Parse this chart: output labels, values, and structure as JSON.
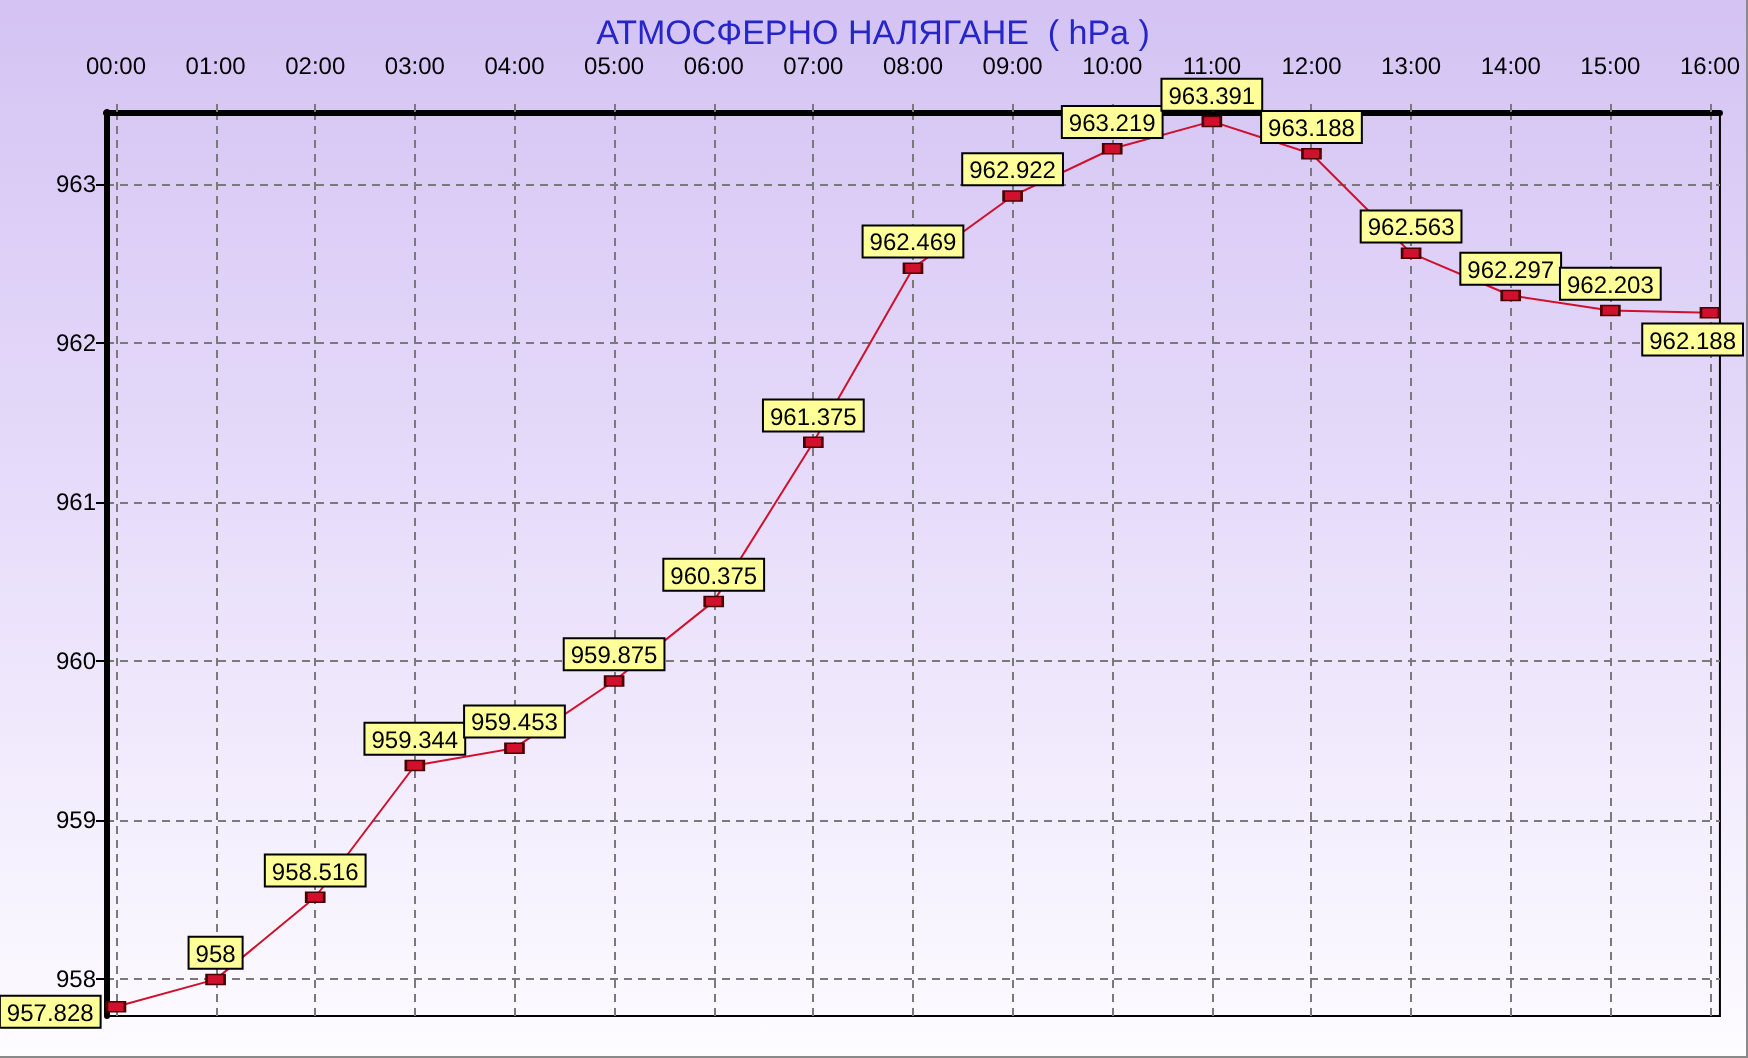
{
  "chart_data": {
    "type": "line",
    "title": "АТМОСФЕРНО НАЛЯГАНЕ  ( hPa )",
    "x": [
      0,
      1,
      2,
      3,
      4,
      5,
      6,
      7,
      8,
      9,
      10,
      11,
      12,
      13,
      14,
      15,
      16
    ],
    "values": [
      957.828,
      958,
      958.516,
      959.344,
      959.453,
      959.875,
      960.375,
      961.375,
      962.469,
      962.922,
      963.219,
      963.391,
      963.188,
      962.563,
      962.297,
      962.203,
      962.188
    ],
    "color": "#d0102c",
    "xlim": [
      -0.1,
      16.1
    ],
    "ylim": [
      957.77,
      963.45
    ],
    "xticks": [
      {
        "value": 0,
        "label": "00:00"
      },
      {
        "value": 1,
        "label": "01:00"
      },
      {
        "value": 2,
        "label": "02:00"
      },
      {
        "value": 3,
        "label": "03:00"
      },
      {
        "value": 4,
        "label": "04:00"
      },
      {
        "value": 5,
        "label": "05:00"
      },
      {
        "value": 6,
        "label": "06:00"
      },
      {
        "value": 7,
        "label": "07:00"
      },
      {
        "value": 8,
        "label": "08:00"
      },
      {
        "value": 9,
        "label": "09:00"
      },
      {
        "value": 10,
        "label": "10:00"
      },
      {
        "value": 11,
        "label": "11:00"
      },
      {
        "value": 12,
        "label": "12:00"
      },
      {
        "value": 13,
        "label": "13:00"
      },
      {
        "value": 14,
        "label": "14:00"
      },
      {
        "value": 15,
        "label": "15:00"
      },
      {
        "value": 16,
        "label": "16:00"
      }
    ],
    "yticks": [
      958,
      959,
      960,
      961,
      962,
      963
    ],
    "grid": true,
    "data_labels": true,
    "marker": "square",
    "line_style": "solid"
  }
}
